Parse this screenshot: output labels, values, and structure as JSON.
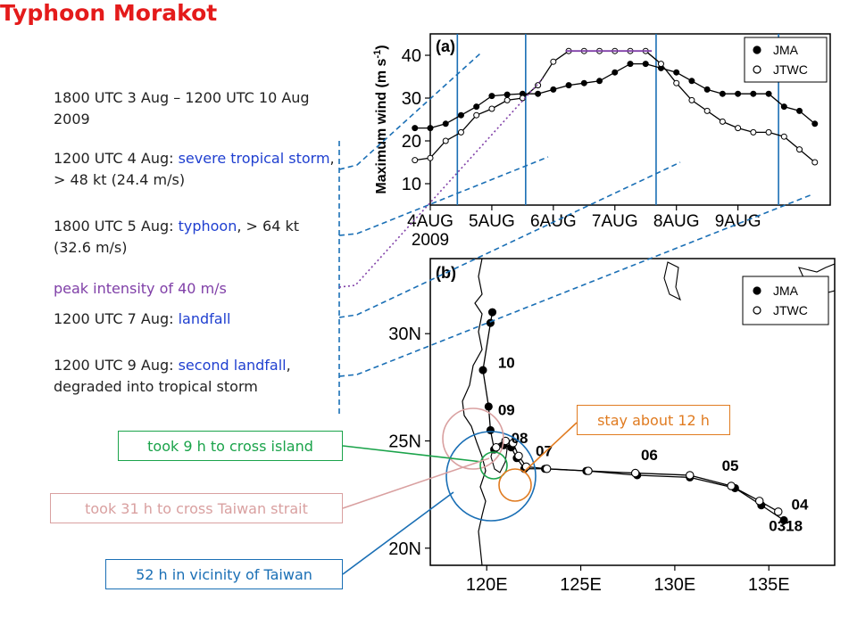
{
  "title": "Typhoon Morakot",
  "notes": {
    "period": "1800 UTC 3 Aug – 1200 UTC 10 Aug 2009",
    "sts_prefix": "1200 UTC 4 Aug: ",
    "sts_event": "severe tropical storm",
    "sts_suffix": ", > 48 kt (24.4 m/s)",
    "ty_prefix": "1800 UTC 5 Aug: ",
    "ty_event": "typhoon",
    "ty_suffix": ", > 64 kt (32.6 m/s)",
    "peak_event": "peak intensity",
    "peak_suffix": " of 40 m/s",
    "landfall_prefix": "1200 UTC 7 Aug: ",
    "landfall_event": "landfall",
    "second_prefix": "1200 UTC 9 Aug: ",
    "second_event": "second landfall",
    "second_suffix": ", degraded into tropical storm"
  },
  "callouts": {
    "cross_island": "took 9 h to cross island",
    "cross_strait": "took 31 h to cross Taiwan strait",
    "vicinity": "52 h in vicinity of Taiwan",
    "stay": "stay about 12 h"
  },
  "colors": {
    "title": "#e41b1b",
    "event": "#1f3fd0",
    "peak": "#8040a8",
    "leader": "#1a6fb5",
    "cross_island": "#1aa34a",
    "cross_strait": "#d9a0a0",
    "vicinity": "#1a6fb5",
    "stay": "#e07b20"
  },
  "chart_data": [
    {
      "type": "line",
      "panel_label": "(a)",
      "ylabel": "Maximum wind (m s",
      "ylabel_sup": "-1",
      "ylim": [
        5,
        45
      ],
      "yticks": [
        10,
        20,
        30,
        40
      ],
      "xlim": [
        0,
        6.5
      ],
      "xticks": [
        0,
        1,
        2,
        3,
        4,
        5
      ],
      "xtick_labels": [
        "4AUG",
        "5AUG",
        "6AUG",
        "7AUG",
        "8AUG",
        "9AUG"
      ],
      "x_year_label": "2009",
      "legend_position": "top-right",
      "series": [
        {
          "name": "JMA",
          "marker": "filled",
          "x": [
            -0.25,
            0,
            0.25,
            0.5,
            0.75,
            1.0,
            1.25,
            1.5,
            1.75,
            2.0,
            2.25,
            2.5,
            2.75,
            3.0,
            3.25,
            3.5,
            3.75,
            4.0,
            4.25,
            4.5,
            4.75,
            5.0,
            5.25,
            5.5,
            5.75,
            6.0,
            6.25
          ],
          "values": [
            23,
            23,
            24,
            26,
            28,
            30.5,
            30.8,
            31,
            31,
            32,
            33,
            33.5,
            34,
            36,
            38,
            38,
            37,
            36,
            34,
            32,
            31,
            31,
            31,
            31,
            28,
            27,
            24
          ]
        },
        {
          "name": "JTWC",
          "marker": "open",
          "x": [
            -0.25,
            0,
            0.25,
            0.5,
            0.75,
            1.0,
            1.25,
            1.5,
            1.75,
            2.0,
            2.25,
            2.5,
            2.75,
            3.0,
            3.25,
            3.5,
            3.75,
            4.0,
            4.25,
            4.5,
            4.75,
            5.0,
            5.25,
            5.5,
            5.75,
            6.0,
            6.25
          ],
          "values": [
            15.5,
            16,
            20,
            22,
            26,
            27.5,
            29.5,
            30,
            33,
            38.5,
            41,
            41,
            41,
            41,
            41,
            41,
            38,
            33.5,
            29.5,
            27,
            24.5,
            23,
            22,
            22,
            21,
            18,
            15
          ]
        }
      ],
      "marker_times": [
        0.44,
        1.55,
        3.67,
        5.66
      ],
      "peak_segment": [
        2.2,
        3.6
      ]
    },
    {
      "type": "scatter",
      "panel_label": "(b)",
      "xlim": [
        117,
        138.5
      ],
      "ylim": [
        19.2,
        33.5
      ],
      "xticks": [
        120,
        125,
        130,
        135
      ],
      "xtick_labels": [
        "120E",
        "125E",
        "130E",
        "135E"
      ],
      "yticks": [
        20,
        25,
        30
      ],
      "ytick_labels": [
        "20N",
        "25N",
        "30N"
      ],
      "legend_position": "top-right",
      "series": [
        {
          "name": "JMA",
          "marker": "filled",
          "lon": [
            135.8,
            134.6,
            133.2,
            130.8,
            128.0,
            125.3,
            123.1,
            122.0,
            121.6,
            121.3,
            120.9,
            120.4,
            120.2,
            120.1,
            119.8,
            120.2,
            120.3
          ],
          "lat": [
            21.3,
            22.0,
            22.8,
            23.3,
            23.4,
            23.6,
            23.7,
            23.7,
            24.2,
            24.7,
            24.8,
            24.6,
            25.5,
            26.6,
            28.3,
            30.5,
            31.0
          ]
        },
        {
          "name": "JTWC",
          "marker": "open",
          "lon": [
            135.5,
            134.5,
            133.0,
            130.8,
            127.9,
            125.4,
            123.2,
            122.1,
            121.7,
            121.4,
            121.0,
            120.5
          ],
          "lat": [
            21.7,
            22.2,
            22.9,
            23.4,
            23.5,
            23.6,
            23.7,
            23.8,
            24.3,
            24.9,
            25.0,
            24.7
          ]
        }
      ],
      "date_labels": [
        {
          "text": "0318",
          "lon": 135.0,
          "lat": 20.8
        },
        {
          "text": "04",
          "lon": 136.2,
          "lat": 21.8
        },
        {
          "text": "05",
          "lon": 132.5,
          "lat": 23.6
        },
        {
          "text": "06",
          "lon": 128.2,
          "lat": 24.1
        },
        {
          "text": "07",
          "lon": 122.6,
          "lat": 24.3
        },
        {
          "text": "08",
          "lon": 121.3,
          "lat": 24.9
        },
        {
          "text": "09",
          "lon": 120.6,
          "lat": 26.2
        },
        {
          "text": "10",
          "lon": 120.6,
          "lat": 28.4
        }
      ]
    }
  ]
}
